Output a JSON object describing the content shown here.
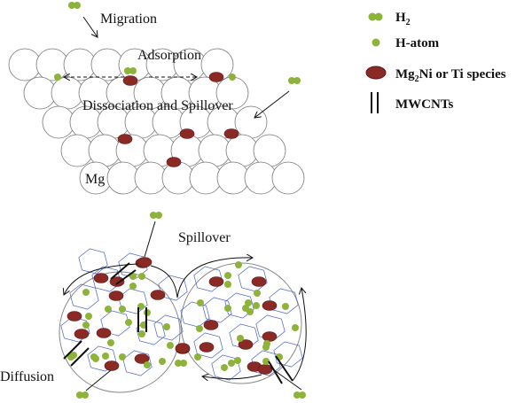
{
  "labels": {
    "migration": "Migration",
    "adsorption": "Adsorption",
    "dissociation": "Dissociation and Spillover",
    "mg": "Mg",
    "spillover": "Spillover",
    "diffusion": "Diffusion"
  },
  "legend": [
    {
      "symbol": "h2-molecule",
      "label": "H",
      "sub": "2",
      "rest": ""
    },
    {
      "symbol": "h-atom",
      "label": "H-atom",
      "sub": "",
      "rest": ""
    },
    {
      "symbol": "catalyst-ellipse",
      "label": "Mg",
      "sub": "2",
      "rest": "Ni or Ti species"
    },
    {
      "symbol": "mwcnt-lines",
      "label": "MWCNTs",
      "sub": "",
      "rest": ""
    }
  ],
  "colors": {
    "hydrogen": "#8db33a",
    "catalyst": "#8b2a24",
    "grain_edge": "#4a63c8",
    "mg_outline": "#777777"
  }
}
